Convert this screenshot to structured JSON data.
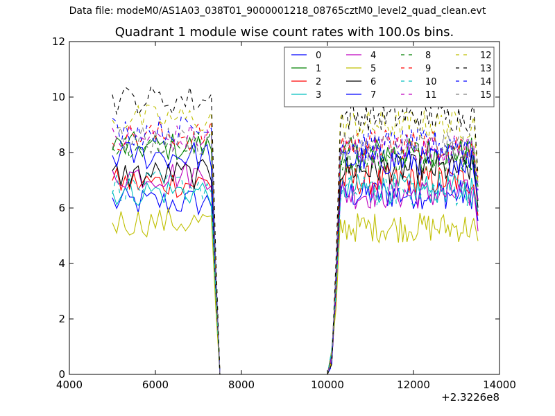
{
  "figure": {
    "suptitle": "Data file: modeM0/AS1A03_038T01_9000001218_08765cztM0_level2_quad_clean.evt",
    "title": "Quadrant 1 module wise count rates with 100.0s bins.",
    "x_offset_label": "+2.3226e8"
  },
  "chart_data": {
    "type": "line",
    "title": "Quadrant 1 module wise count rates with 100.0s bins.",
    "xlabel": "",
    "ylabel": "",
    "xlim": [
      4000,
      14000
    ],
    "ylim": [
      0,
      12
    ],
    "x_ticks": [
      4000,
      6000,
      8000,
      10000,
      12000,
      14000
    ],
    "y_ticks": [
      0,
      2,
      4,
      6,
      8,
      10,
      12
    ],
    "x_offset": "+2.3226e8",
    "legend": {
      "placement": "top-right",
      "columns": 4
    },
    "grid": false,
    "segments": [
      {
        "range": [
          5000,
          7300
        ],
        "step": 100
      },
      {
        "range": [
          10100,
          13500
        ],
        "step": 100
      }
    ],
    "series": [
      {
        "name": "0",
        "color": "#0000ff",
        "dash": "solid",
        "level": [
          6.2,
          6.5
        ]
      },
      {
        "name": "1",
        "color": "#008000",
        "dash": "solid",
        "level": [
          8.2,
          8.0
        ]
      },
      {
        "name": "2",
        "color": "#ff0000",
        "dash": "solid",
        "level": [
          6.9,
          7.0
        ]
      },
      {
        "name": "3",
        "color": "#00bfbf",
        "dash": "solid",
        "level": [
          6.6,
          6.7
        ]
      },
      {
        "name": "4",
        "color": "#bf00bf",
        "dash": "solid",
        "level": [
          7.2,
          6.5
        ]
      },
      {
        "name": "5",
        "color": "#bfbf00",
        "dash": "solid",
        "level": [
          5.5,
          5.3
        ]
      },
      {
        "name": "6",
        "color": "#000000",
        "dash": "solid",
        "level": [
          7.2,
          7.4
        ]
      },
      {
        "name": "7",
        "color": "#0000ff",
        "dash": "solid",
        "level": [
          7.9,
          7.7
        ]
      },
      {
        "name": "8",
        "color": "#008000",
        "dash": "dashed",
        "level": [
          8.3,
          7.8
        ]
      },
      {
        "name": "9",
        "color": "#ff0000",
        "dash": "dashed",
        "level": [
          8.6,
          8.3
        ]
      },
      {
        "name": "10",
        "color": "#00bfbf",
        "dash": "dashed",
        "level": [
          6.8,
          6.6
        ]
      },
      {
        "name": "11",
        "color": "#bf00bf",
        "dash": "dashed",
        "level": [
          8.5,
          8.1
        ]
      },
      {
        "name": "12",
        "color": "#bfbf00",
        "dash": "dashed",
        "level": [
          9.2,
          9.0
        ]
      },
      {
        "name": "13",
        "color": "#000000",
        "dash": "dashed",
        "level": [
          9.9,
          9.3
        ]
      },
      {
        "name": "14",
        "color": "#0000ff",
        "dash": "dashed",
        "level": [
          8.8,
          8.3
        ]
      },
      {
        "name": "15",
        "color": "#808080",
        "dash": "dashed",
        "level": [
          8.4,
          8.2
        ]
      }
    ]
  }
}
